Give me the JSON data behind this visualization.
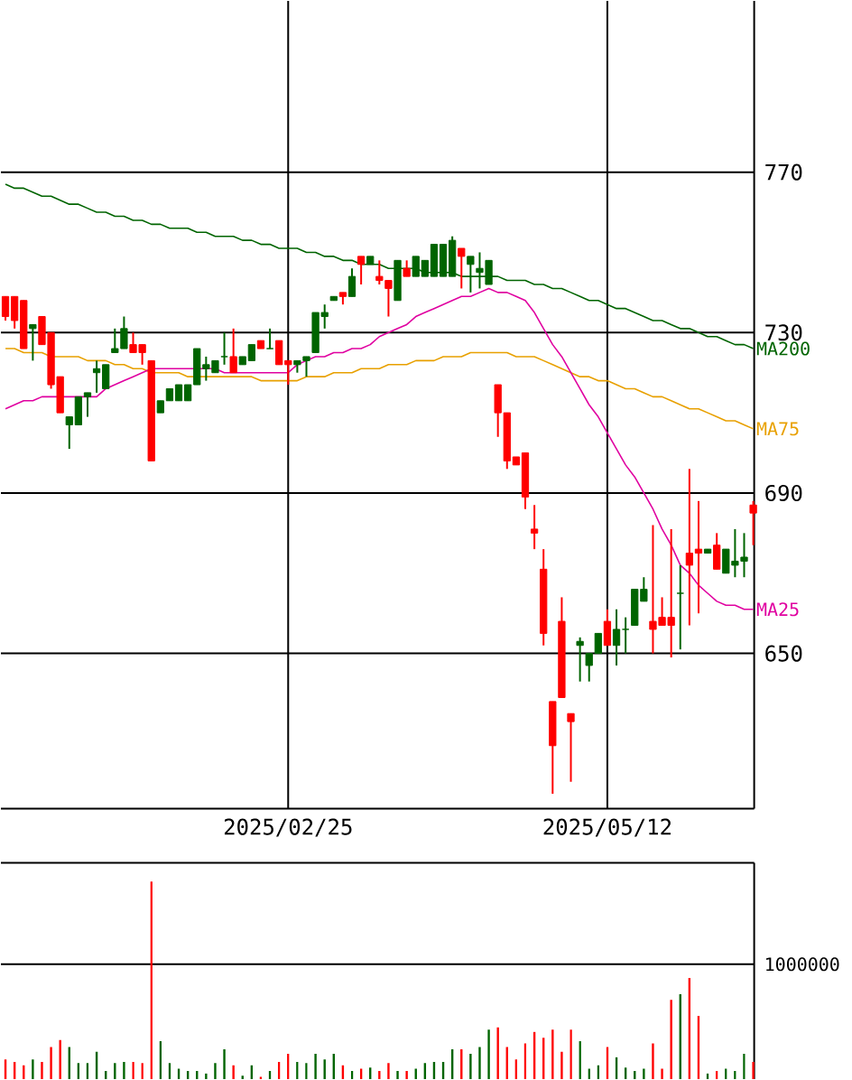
{
  "chart_data": [
    {
      "type": "candlestick",
      "categories": [
        null,
        null,
        null,
        null,
        null,
        null,
        null,
        null,
        null,
        null,
        null,
        null,
        null,
        null,
        null,
        null,
        null,
        null,
        null,
        null,
        null,
        null,
        null,
        null,
        null,
        null,
        null,
        null,
        null,
        null,
        null,
        "2025/02/25",
        null,
        null,
        null,
        null,
        null,
        null,
        null,
        null,
        null,
        null,
        null,
        null,
        null,
        null,
        null,
        null,
        null,
        null,
        null,
        null,
        null,
        null,
        null,
        null,
        null,
        null,
        null,
        null,
        null,
        null,
        null,
        null,
        null,
        null,
        "2025/05/12",
        null,
        null,
        null,
        null,
        null,
        null,
        null,
        null,
        null,
        null,
        null,
        null,
        null,
        null,
        null,
        null
      ],
      "ohlc": [
        [
          739,
          739,
          733,
          734
        ],
        [
          739,
          739,
          731,
          733
        ],
        [
          738,
          738,
          726,
          726
        ],
        [
          731,
          732,
          723,
          732
        ],
        [
          734,
          734,
          727,
          727
        ],
        [
          730,
          730,
          716,
          717
        ],
        [
          719,
          719,
          710,
          710
        ],
        [
          707,
          709,
          701,
          709
        ],
        [
          707,
          714,
          707,
          714
        ],
        [
          714,
          715,
          709,
          715
        ],
        [
          720,
          723,
          715,
          721
        ],
        [
          716,
          722,
          716,
          722
        ],
        [
          725,
          731,
          725,
          726
        ],
        [
          726,
          734,
          726,
          731
        ],
        [
          727,
          730,
          725,
          725
        ],
        [
          727,
          727,
          722,
          725
        ],
        [
          723,
          723,
          698,
          698
        ],
        [
          710,
          713,
          710,
          713
        ],
        [
          713,
          716,
          713,
          716
        ],
        [
          713,
          717,
          713,
          717
        ],
        [
          713,
          717,
          713,
          717
        ],
        [
          717,
          726,
          717,
          726
        ],
        [
          721,
          724,
          718,
          722
        ],
        [
          720,
          723,
          720,
          723
        ],
        [
          724,
          730,
          722,
          724
        ],
        [
          724,
          731,
          720,
          720
        ],
        [
          722,
          724,
          722,
          724
        ],
        [
          723,
          727,
          723,
          727
        ],
        [
          728,
          728,
          726,
          726
        ],
        [
          726,
          731,
          726,
          726
        ],
        [
          728,
          728,
          722,
          722
        ],
        [
          723,
          723,
          717,
          722
        ],
        [
          722,
          723,
          720,
          723
        ],
        [
          723,
          724,
          719,
          724
        ],
        [
          725,
          735,
          725,
          735
        ],
        [
          734,
          737,
          731,
          735
        ],
        [
          738,
          739,
          738,
          739
        ],
        [
          740,
          740,
          737,
          739
        ],
        [
          739,
          746,
          739,
          744
        ],
        [
          749,
          749,
          742,
          747
        ],
        [
          747,
          749,
          747,
          749
        ],
        [
          744,
          748,
          742,
          743
        ],
        [
          743,
          743,
          734,
          741
        ],
        [
          738,
          748,
          738,
          748
        ],
        [
          746,
          748,
          744,
          744
        ],
        [
          744,
          749,
          744,
          749
        ],
        [
          744,
          748,
          744,
          748
        ],
        [
          744,
          752,
          744,
          752
        ],
        [
          744,
          752,
          744,
          752
        ],
        [
          744,
          754,
          744,
          753
        ],
        [
          751,
          751,
          741,
          749
        ],
        [
          747,
          749,
          740,
          749
        ],
        [
          745,
          750,
          741,
          746
        ],
        [
          742,
          748,
          742,
          748
        ],
        [
          717,
          717,
          704,
          710
        ],
        [
          710,
          710,
          696,
          698
        ],
        [
          699,
          699,
          697,
          697
        ],
        [
          700,
          700,
          686,
          689
        ],
        [
          681,
          687,
          676,
          680
        ],
        [
          671,
          676,
          652,
          655
        ],
        [
          638,
          638,
          615,
          627
        ],
        [
          658,
          664,
          639,
          639
        ],
        [
          635,
          635,
          618,
          633
        ],
        [
          652,
          654,
          643,
          653
        ],
        [
          647,
          650,
          643,
          650
        ],
        [
          650,
          655,
          650,
          655
        ],
        [
          658,
          661,
          652,
          652
        ],
        [
          652,
          661,
          647,
          656
        ],
        [
          656,
          659,
          650,
          656
        ],
        [
          657,
          666,
          657,
          666
        ],
        [
          663,
          669,
          663,
          666
        ],
        [
          658,
          682,
          650,
          656
        ],
        [
          659,
          664,
          657,
          657
        ],
        [
          659,
          681,
          649,
          657
        ],
        [
          665,
          672,
          651,
          665
        ],
        [
          675,
          696,
          657,
          672
        ],
        [
          676,
          688,
          660,
          675
        ],
        [
          675,
          676,
          675,
          676
        ],
        [
          677,
          680,
          671,
          671
        ],
        [
          670,
          676,
          670,
          676
        ],
        [
          672,
          681,
          669,
          673
        ],
        [
          673,
          680,
          669,
          674
        ],
        [
          687,
          688,
          677,
          685
        ]
      ],
      "colors": [
        "#ff0000",
        "#ff0000",
        "#ff0000",
        "#006400",
        "#ff0000",
        "#ff0000",
        "#ff0000",
        "#006400",
        "#006400",
        "#006400",
        "#006400",
        "#006400",
        "#006400",
        "#006400",
        "#ff0000",
        "#ff0000",
        "#ff0000",
        "#006400",
        "#006400",
        "#006400",
        "#006400",
        "#006400",
        "#006400",
        "#006400",
        "#006400",
        "#ff0000",
        "#006400",
        "#006400",
        "#ff0000",
        "#006400",
        "#ff0000",
        "#ff0000",
        "#006400",
        "#006400",
        "#006400",
        "#006400",
        "#006400",
        "#ff0000",
        "#006400",
        "#ff0000",
        "#006400",
        "#ff0000",
        "#ff0000",
        "#006400",
        "#ff0000",
        "#006400",
        "#006400",
        "#006400",
        "#006400",
        "#006400",
        "#ff0000",
        "#006400",
        "#006400",
        "#006400",
        "#ff0000",
        "#ff0000",
        "#ff0000",
        "#ff0000",
        "#ff0000",
        "#ff0000",
        "#ff0000",
        "#ff0000",
        "#ff0000",
        "#006400",
        "#006400",
        "#006400",
        "#ff0000",
        "#006400",
        "#006400",
        "#006400",
        "#006400",
        "#ff0000",
        "#ff0000",
        "#ff0000",
        "#006400",
        "#ff0000",
        "#ff0000",
        "#006400",
        "#ff0000",
        "#006400",
        "#006400",
        "#006400",
        "#ff0000"
      ],
      "series": [
        {
          "name": "MA200",
          "type": "line",
          "color": "#006400",
          "values": [
            767,
            766,
            766,
            765,
            764,
            764,
            763,
            762,
            762,
            761,
            760,
            760,
            759,
            759,
            758,
            758,
            757,
            757,
            756,
            756,
            756,
            755,
            755,
            754,
            754,
            754,
            753,
            753,
            752,
            752,
            751,
            751,
            751,
            750,
            750,
            749,
            749,
            748,
            748,
            747,
            747,
            747,
            746,
            746,
            746,
            746,
            745,
            745,
            745,
            745,
            744,
            744,
            744,
            744,
            744,
            743,
            743,
            743,
            742,
            742,
            741,
            741,
            740,
            739,
            738,
            738,
            737,
            736,
            736,
            735,
            734,
            733,
            733,
            732,
            731,
            731,
            730,
            729,
            729,
            728,
            727,
            727,
            726
          ]
        },
        {
          "name": "MA75",
          "type": "line",
          "color": "#e8a000",
          "values": [
            726,
            726,
            725,
            725,
            725,
            724,
            724,
            724,
            724,
            723,
            723,
            723,
            722,
            722,
            721,
            721,
            720,
            720,
            720,
            720,
            719,
            719,
            719,
            719,
            719,
            719,
            719,
            719,
            718,
            718,
            718,
            718,
            718,
            719,
            719,
            719,
            720,
            720,
            720,
            721,
            721,
            721,
            722,
            722,
            722,
            723,
            723,
            723,
            724,
            724,
            724,
            725,
            725,
            725,
            725,
            725,
            724,
            724,
            724,
            723,
            722,
            721,
            720,
            719,
            719,
            718,
            718,
            717,
            716,
            716,
            715,
            714,
            714,
            713,
            712,
            711,
            711,
            710,
            709,
            708,
            708,
            707,
            706
          ]
        },
        {
          "name": "MA25",
          "type": "line",
          "color": "#e000a0",
          "values": [
            711,
            712,
            713,
            713,
            714,
            714,
            714,
            714,
            714,
            714,
            714,
            716,
            717,
            718,
            719,
            720,
            721,
            721,
            721,
            721,
            721,
            721,
            721,
            721,
            720,
            720,
            720,
            720,
            720,
            720,
            720,
            720,
            722,
            723,
            724,
            724,
            725,
            725,
            726,
            726,
            727,
            729,
            730,
            731,
            732,
            734,
            735,
            736,
            737,
            738,
            739,
            739,
            740,
            741,
            740,
            740,
            739,
            738,
            735,
            731,
            727,
            724,
            720,
            716,
            712,
            709,
            705,
            701,
            697,
            694,
            690,
            686,
            681,
            677,
            672,
            670,
            667,
            665,
            663,
            662,
            662,
            661,
            661
          ]
        }
      ],
      "ylim": [
        611.3,
        812.7
      ],
      "yticks": [
        650,
        690,
        730,
        770
      ],
      "grid": true
    },
    {
      "type": "bar",
      "categories": [
        null,
        null,
        null,
        null,
        null,
        null,
        null,
        null,
        null,
        null,
        null,
        null,
        null,
        null,
        null,
        null,
        null,
        null,
        null,
        null,
        null,
        null,
        null,
        null,
        null,
        null,
        null,
        null,
        null,
        null,
        null,
        null,
        null,
        null,
        null,
        null,
        null,
        null,
        null,
        null,
        null,
        null,
        null,
        null,
        null,
        null,
        null,
        null,
        null,
        null,
        null,
        null,
        null,
        null,
        null,
        null,
        null,
        null,
        null,
        null,
        null,
        null,
        null,
        null,
        null,
        null,
        null,
        null,
        null,
        null,
        null,
        null,
        null,
        null,
        null,
        null,
        null,
        null,
        null,
        null,
        null,
        null,
        null
      ],
      "values": [
        170000,
        150000,
        120000,
        170000,
        150000,
        280000,
        340000,
        280000,
        140000,
        140000,
        240000,
        70000,
        140000,
        150000,
        150000,
        140000,
        1720000,
        330000,
        140000,
        90000,
        70000,
        70000,
        50000,
        140000,
        260000,
        120000,
        30000,
        120000,
        20000,
        70000,
        150000,
        220000,
        150000,
        140000,
        220000,
        170000,
        220000,
        120000,
        70000,
        90000,
        100000,
        70000,
        140000,
        70000,
        70000,
        90000,
        140000,
        150000,
        150000,
        260000,
        260000,
        220000,
        280000,
        430000,
        450000,
        280000,
        170000,
        310000,
        410000,
        360000,
        430000,
        240000,
        430000,
        330000,
        90000,
        120000,
        280000,
        190000,
        100000,
        70000,
        90000,
        310000,
        90000,
        690000,
        740000,
        880000,
        550000,
        50000,
        70000,
        90000,
        70000,
        220000,
        150000
      ],
      "colors": [
        "#ff0000",
        "#ff0000",
        "#ff0000",
        "#006400",
        "#ff0000",
        "#ff0000",
        "#ff0000",
        "#006400",
        "#006400",
        "#006400",
        "#006400",
        "#006400",
        "#006400",
        "#006400",
        "#ff0000",
        "#ff0000",
        "#ff0000",
        "#006400",
        "#006400",
        "#006400",
        "#006400",
        "#006400",
        "#006400",
        "#006400",
        "#006400",
        "#ff0000",
        "#006400",
        "#006400",
        "#ff0000",
        "#006400",
        "#ff0000",
        "#ff0000",
        "#006400",
        "#006400",
        "#006400",
        "#006400",
        "#006400",
        "#ff0000",
        "#006400",
        "#ff0000",
        "#006400",
        "#ff0000",
        "#ff0000",
        "#006400",
        "#ff0000",
        "#006400",
        "#006400",
        "#006400",
        "#006400",
        "#006400",
        "#ff0000",
        "#006400",
        "#006400",
        "#006400",
        "#ff0000",
        "#ff0000",
        "#ff0000",
        "#ff0000",
        "#ff0000",
        "#ff0000",
        "#ff0000",
        "#ff0000",
        "#ff0000",
        "#006400",
        "#006400",
        "#006400",
        "#ff0000",
        "#006400",
        "#006400",
        "#006400",
        "#006400",
        "#ff0000",
        "#ff0000",
        "#ff0000",
        "#006400",
        "#ff0000",
        "#ff0000",
        "#006400",
        "#ff0000",
        "#006400",
        "#006400",
        "#006400",
        "#ff0000"
      ],
      "ylim": [
        0,
        1884000
      ],
      "yticks": [
        1000000
      ],
      "grid": "y",
      "tick_labels": "y"
    }
  ]
}
